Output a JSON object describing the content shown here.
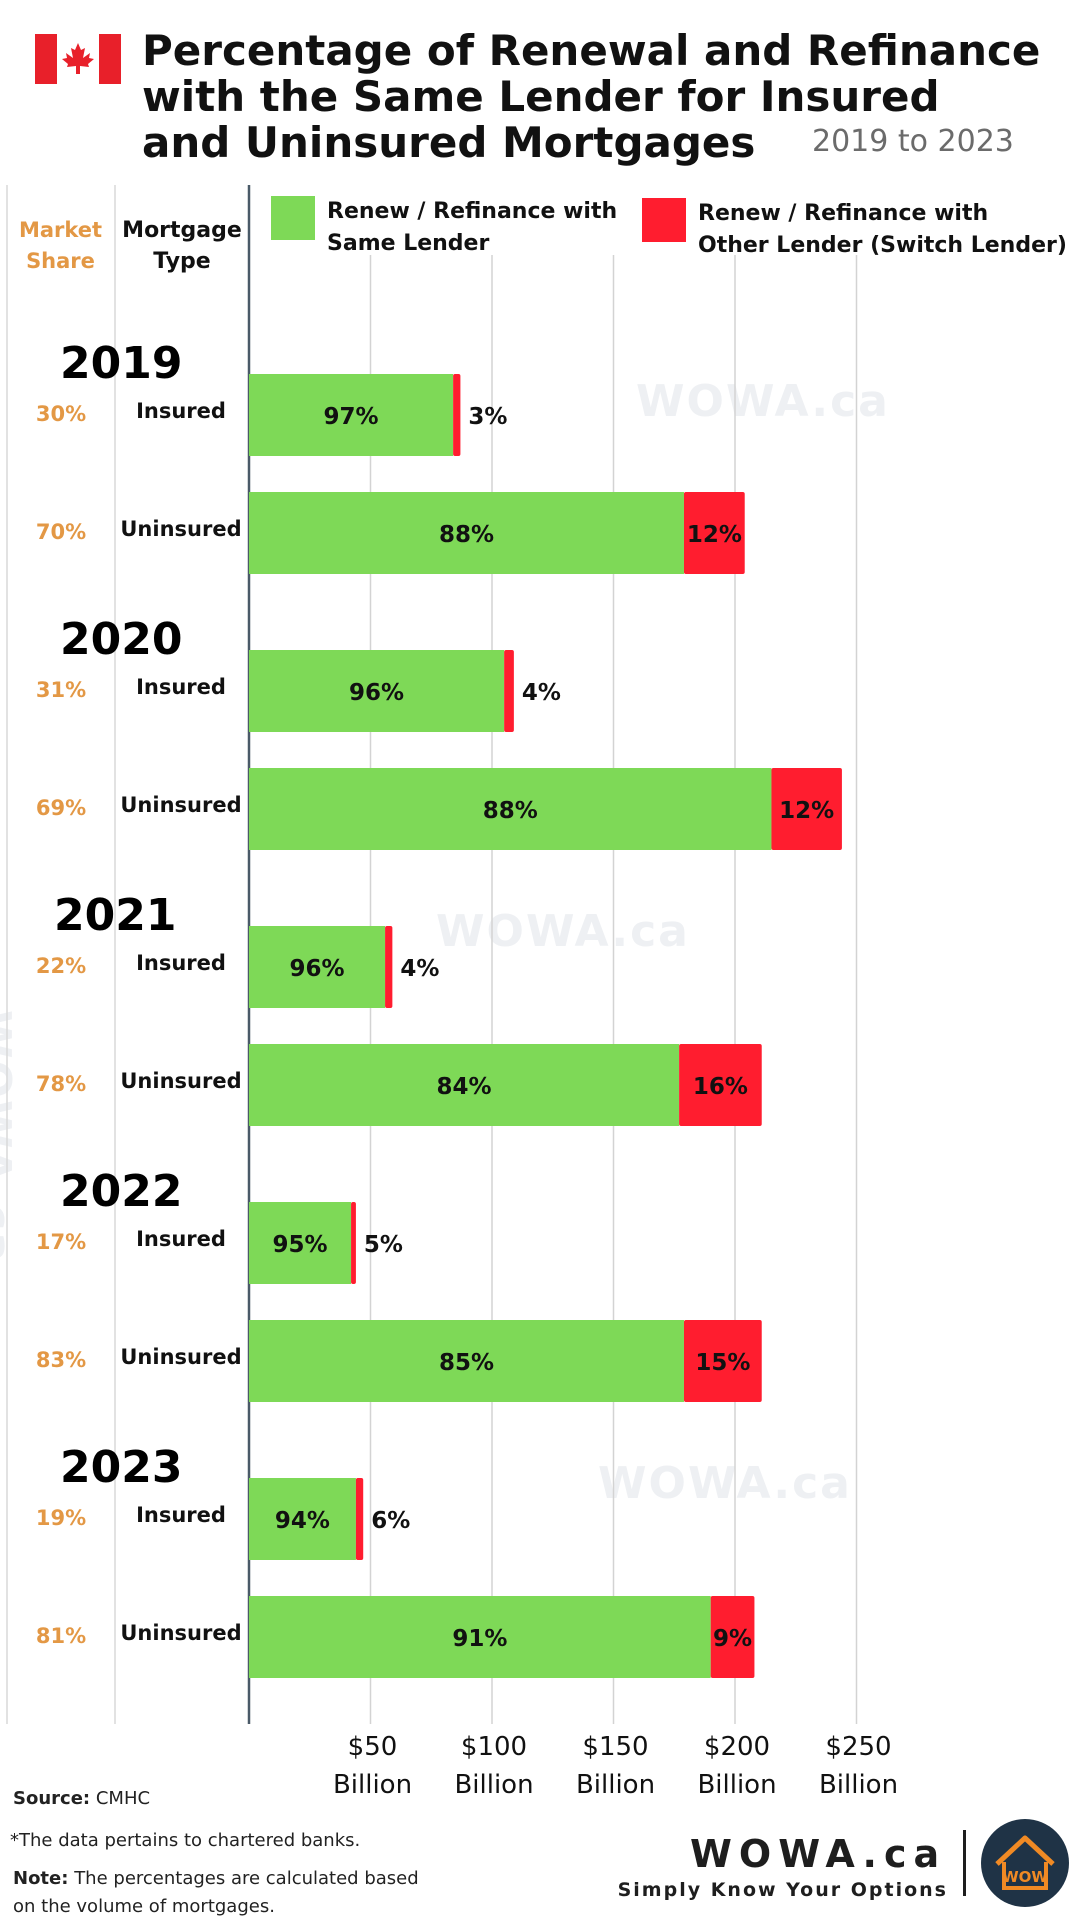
{
  "header": {
    "title_lines": [
      "Percentage of Renewal and Refinance",
      "with the Same Lender for Insured",
      "and Uninsured Mortgages"
    ],
    "subtitle": "2019 to 2023"
  },
  "columns": {
    "market_share": [
      "Market",
      "Share"
    ],
    "mortgage_type": [
      "Mortgage",
      "Type"
    ]
  },
  "legend": {
    "same_lender": [
      "Renew / Refinance with",
      "Same Lender"
    ],
    "other_lender": [
      "Renew / Refinance with",
      "Other Lender (Switch Lender)"
    ]
  },
  "colors": {
    "same_lender": "#7ed957",
    "other_lender": "#ff1d2f",
    "market_share_text": "#e39845",
    "gridline": "#d3d3d3"
  },
  "watermarks": [
    "WOWA.ca",
    "WOWA.ca",
    "WOWA.ca",
    "WOWA.ca"
  ],
  "chart_data": {
    "type": "bar",
    "orientation": "horizontal",
    "stacked": true,
    "unit": "Billion",
    "xlim": [
      0,
      250
    ],
    "x_ticks": [
      {
        "value": 50,
        "label": [
          "$50",
          "Billion"
        ]
      },
      {
        "value": 100,
        "label": [
          "$100",
          "Billion"
        ]
      },
      {
        "value": 150,
        "label": [
          "$150",
          "Billion"
        ]
      },
      {
        "value": 200,
        "label": [
          "$200",
          "Billion"
        ]
      },
      {
        "value": 250,
        "label": [
          "$250",
          "Billion"
        ]
      }
    ],
    "grid": true,
    "legend_position": "top",
    "series": [
      {
        "name": "Renew / Refinance with Same Lender"
      },
      {
        "name": "Renew / Refinance with Other Lender (Switch Lender)"
      }
    ],
    "groups": [
      {
        "year": "2019",
        "rows": [
          {
            "type": "Insured",
            "market_share": "30%",
            "same_value": 84,
            "other_value": 3,
            "same_label": "97%",
            "other_label": "3%"
          },
          {
            "type": "Uninsured",
            "market_share": "70%",
            "same_value": 179,
            "other_value": 25,
            "same_label": "88%",
            "other_label": "12%"
          }
        ]
      },
      {
        "year": "2020",
        "rows": [
          {
            "type": "Insured",
            "market_share": "31%",
            "same_value": 105,
            "other_value": 4,
            "same_label": "96%",
            "other_label": "4%"
          },
          {
            "type": "Uninsured",
            "market_share": "69%",
            "same_value": 215,
            "other_value": 29,
            "same_label": "88%",
            "other_label": "12%"
          }
        ]
      },
      {
        "year": "2021",
        "rows": [
          {
            "type": "Insured",
            "market_share": "22%",
            "same_value": 56,
            "other_value": 3,
            "same_label": "96%",
            "other_label": "4%"
          },
          {
            "type": "Uninsured",
            "market_share": "78%",
            "same_value": 177,
            "other_value": 34,
            "same_label": "84%",
            "other_label": "16%"
          }
        ]
      },
      {
        "year": "2022",
        "rows": [
          {
            "type": "Insured",
            "market_share": "17%",
            "same_value": 42,
            "other_value": 2,
            "same_label": "95%",
            "other_label": "5%"
          },
          {
            "type": "Uninsured",
            "market_share": "83%",
            "same_value": 179,
            "other_value": 32,
            "same_label": "85%",
            "other_label": "15%"
          }
        ]
      },
      {
        "year": "2023",
        "rows": [
          {
            "type": "Insured",
            "market_share": "19%",
            "same_value": 44,
            "other_value": 3,
            "same_label": "94%",
            "other_label": "6%"
          },
          {
            "type": "Uninsured",
            "market_share": "81%",
            "same_value": 190,
            "other_value": 18,
            "same_label": "91%",
            "other_label": "9%"
          }
        ]
      }
    ]
  },
  "footer": {
    "source_label": "Source:",
    "source_value": "CMHC",
    "footnote": "*The data pertains to chartered banks.",
    "note_label": "Note:",
    "note_text": "The percentages are calculated based on the volume of mortgages.",
    "brand": "WOWA.ca",
    "tagline": "Simply Know Your Options",
    "logo_text": "WOW"
  }
}
